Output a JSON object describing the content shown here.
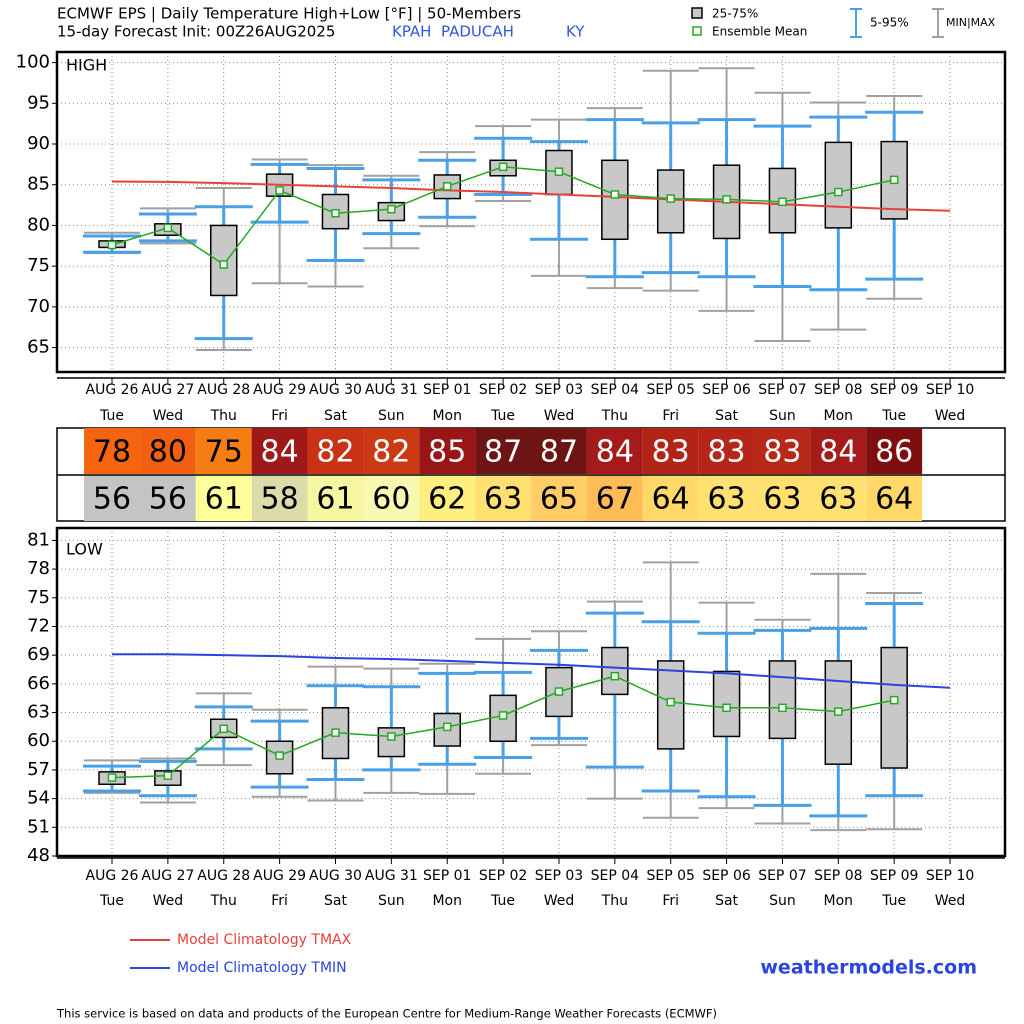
{
  "header": {
    "title": "ECMWF EPS | Daily Temperature High+Low [°F] | 50-Members",
    "init": "15-day Forecast Init: 00Z26AUG2025",
    "station": "KPAH  PADUCAH",
    "state": "KY"
  },
  "legend": {
    "box": "25-75%",
    "mean": "Ensemble Mean",
    "whisker": "5-95%",
    "range": "MIN|MAX"
  },
  "chart_data": [
    {
      "type": "box",
      "label": "HIGH",
      "categories": [
        "AUG 26",
        "AUG 27",
        "AUG 28",
        "AUG 29",
        "AUG 30",
        "AUG 31",
        "SEP 01",
        "SEP 02",
        "SEP 03",
        "SEP 04",
        "SEP 05",
        "SEP 06",
        "SEP 07",
        "SEP 08",
        "SEP 09",
        "SEP 10"
      ],
      "weekdays": [
        "Tue",
        "Wed",
        "Thu",
        "Fri",
        "Sat",
        "Sun",
        "Mon",
        "Tue",
        "Wed",
        "Thu",
        "Fri",
        "Sat",
        "Sun",
        "Mon",
        "Tue",
        "Wed"
      ],
      "stats": {
        "min": [
          76.6,
          77.8,
          64.7,
          72.9,
          72.5,
          77.2,
          79.9,
          83.0,
          73.8,
          72.3,
          72.0,
          69.5,
          65.8,
          67.2,
          71.0,
          null
        ],
        "p5": [
          76.7,
          78.1,
          66.1,
          80.4,
          75.7,
          79.0,
          81.0,
          83.8,
          78.3,
          73.7,
          74.2,
          73.7,
          72.5,
          72.1,
          73.4,
          null
        ],
        "p25": [
          77.3,
          78.8,
          71.4,
          83.6,
          79.6,
          80.6,
          83.3,
          86.1,
          83.8,
          78.3,
          79.1,
          78.4,
          79.1,
          79.7,
          80.8,
          null
        ],
        "mean": [
          77.6,
          79.7,
          75.2,
          84.3,
          81.5,
          82.0,
          84.8,
          87.2,
          86.6,
          83.8,
          83.3,
          83.2,
          82.9,
          84.1,
          85.6,
          null
        ],
        "p75": [
          78.1,
          80.2,
          80.0,
          86.3,
          83.8,
          82.8,
          86.2,
          88.0,
          89.2,
          88.0,
          86.8,
          87.4,
          87.0,
          90.2,
          90.3,
          null
        ],
        "p95": [
          78.7,
          81.4,
          82.3,
          87.5,
          87.0,
          85.6,
          88.0,
          90.7,
          90.3,
          93.0,
          92.6,
          93.0,
          92.2,
          93.3,
          93.9,
          null
        ],
        "max": [
          79.1,
          82.1,
          84.6,
          88.1,
          87.4,
          86.1,
          89.0,
          92.2,
          93.0,
          94.4,
          99.0,
          99.3,
          96.3,
          95.1,
          95.9,
          null
        ]
      },
      "climatology": {
        "name": "Model Climatology TMAX",
        "color": "#e8403a",
        "values": [
          85.4,
          85.35,
          85.2,
          85.0,
          84.8,
          84.6,
          84.3,
          84.1,
          83.8,
          83.5,
          83.2,
          82.9,
          82.6,
          82.3,
          82.0,
          81.8
        ]
      },
      "box_color": "#c8c8c8",
      "whisker_color": "#4aa0e6",
      "range_color": "#a0a0a0",
      "mean_color": "#22aa22",
      "ylim": [
        62,
        101.3
      ],
      "yticks": [
        65,
        70,
        75,
        80,
        85,
        90,
        95,
        100
      ],
      "grid": true
    },
    {
      "type": "box",
      "label": "LOW",
      "categories": [
        "AUG 26",
        "AUG 27",
        "AUG 28",
        "AUG 29",
        "AUG 30",
        "AUG 31",
        "SEP 01",
        "SEP 02",
        "SEP 03",
        "SEP 04",
        "SEP 05",
        "SEP 06",
        "SEP 07",
        "SEP 08",
        "SEP 09",
        "SEP 10"
      ],
      "weekdays": [
        "Tue",
        "Wed",
        "Thu",
        "Fri",
        "Sat",
        "Sun",
        "Mon",
        "Tue",
        "Wed",
        "Thu",
        "Fri",
        "Sat",
        "Sun",
        "Mon",
        "Tue",
        "Wed"
      ],
      "stats": {
        "min": [
          54.6,
          53.6,
          57.5,
          54.2,
          53.8,
          54.6,
          54.5,
          56.6,
          59.6,
          54.0,
          52.0,
          53.0,
          51.4,
          50.7,
          50.8,
          null
        ],
        "p5": [
          54.8,
          54.3,
          59.2,
          55.2,
          56.0,
          57.0,
          57.6,
          58.3,
          60.3,
          57.3,
          54.8,
          54.2,
          53.3,
          52.2,
          54.3,
          null
        ],
        "p25": [
          55.5,
          55.4,
          60.4,
          56.6,
          58.2,
          58.4,
          59.5,
          60.0,
          62.6,
          64.9,
          59.2,
          60.5,
          60.3,
          57.6,
          57.2,
          null
        ],
        "mean": [
          56.2,
          56.4,
          61.3,
          58.5,
          60.9,
          60.5,
          61.5,
          62.7,
          65.2,
          66.8,
          64.1,
          63.5,
          63.5,
          63.1,
          64.3,
          null
        ],
        "p75": [
          56.8,
          56.9,
          62.3,
          60.0,
          63.5,
          61.4,
          62.9,
          64.8,
          67.7,
          69.8,
          68.4,
          67.3,
          68.4,
          68.4,
          69.8,
          null
        ],
        "p95": [
          57.4,
          57.9,
          63.6,
          62.1,
          65.8,
          65.7,
          67.1,
          67.2,
          69.5,
          73.4,
          72.5,
          71.3,
          71.6,
          71.8,
          74.4,
          null
        ],
        "max": [
          58.0,
          58.2,
          65.0,
          63.3,
          67.8,
          67.6,
          68.1,
          70.7,
          71.5,
          74.6,
          78.7,
          74.5,
          72.7,
          77.5,
          75.5,
          null
        ]
      },
      "climatology": {
        "name": "Model Climatology TMIN",
        "color": "#2a44dd",
        "values": [
          69.1,
          69.1,
          69.0,
          68.9,
          68.7,
          68.6,
          68.4,
          68.2,
          68.0,
          67.7,
          67.4,
          67.1,
          66.7,
          66.3,
          65.9,
          65.6
        ]
      },
      "box_color": "#c8c8c8",
      "whisker_color": "#4aa0e6",
      "range_color": "#a0a0a0",
      "mean_color": "#22aa22",
      "ylim": [
        48,
        82.3
      ],
      "yticks": [
        48,
        51,
        54,
        57,
        60,
        63,
        66,
        69,
        72,
        75,
        78,
        81
      ],
      "grid": true
    }
  ],
  "summary_table": {
    "high": [
      78,
      80,
      75,
      84,
      82,
      82,
      85,
      87,
      87,
      84,
      83,
      83,
      83,
      84,
      86
    ],
    "high_colors": [
      "#f5640f",
      "#f06010",
      "#f57d14",
      "#a01818",
      "#c93214",
      "#cc3a14",
      "#9a1616",
      "#6e1414",
      "#6e1414",
      "#a51a1a",
      "#b22418",
      "#b52618",
      "#b82818",
      "#a51a1a",
      "#7e0f0f"
    ],
    "low": [
      56,
      56,
      61,
      58,
      61,
      60,
      62,
      63,
      65,
      67,
      64,
      63,
      63,
      63,
      64
    ],
    "low_colors": [
      "#c4c4c4",
      "#c4c4c4",
      "#ffff99",
      "#dcdcaa",
      "#f6f6a0",
      "#f8f8b0",
      "#ffef80",
      "#ffe070",
      "#ffcc66",
      "#ffbb55",
      "#ffd868",
      "#ffe070",
      "#ffe070",
      "#ffe070",
      "#ffd868"
    ]
  },
  "site": "weathermodels.com",
  "footer": "This service is based on data and products of the European Centre for Medium-Range Weather Forecasts (ECMWF)"
}
